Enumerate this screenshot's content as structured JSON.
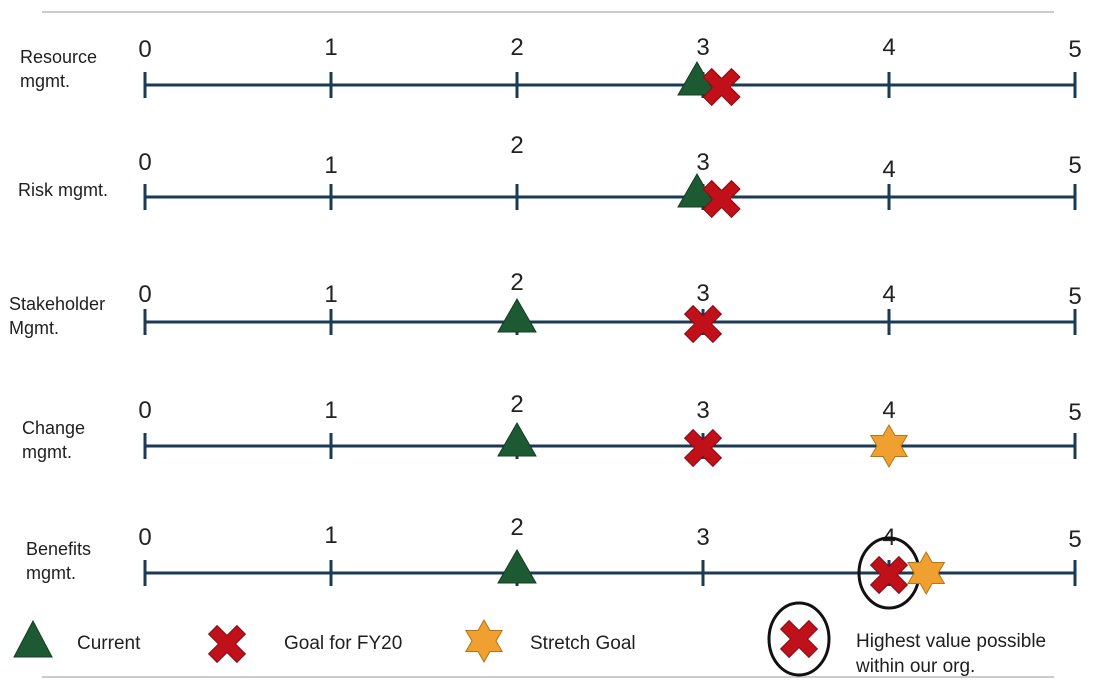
{
  "chart_data": {
    "type": "scatter",
    "x_ticks": [
      "0",
      "1",
      "2",
      "3",
      "4",
      "5"
    ],
    "xlim": [
      0,
      5
    ],
    "grid": false,
    "legend_placement": "bottom",
    "colors": {
      "current": "#1d5a33",
      "goal": "#c0101a",
      "stretch": "#f0a030",
      "axis": "#1b3a54"
    },
    "categories": [
      "Resource\nmgmt.",
      "Risk mgmt.",
      "Stakeholder\nMgmt.",
      "Change\nmgmt.",
      "Benefits\nmgmt."
    ],
    "series": [
      {
        "name": "Current",
        "marker": "triangle",
        "values": [
          3,
          3,
          2,
          2,
          2
        ]
      },
      {
        "name": "Goal for FY20",
        "marker": "cross",
        "values": [
          3.1,
          3.1,
          3,
          3,
          4
        ]
      },
      {
        "name": "Stretch Goal",
        "marker": "star",
        "values": [
          null,
          null,
          null,
          4,
          4.2
        ]
      }
    ],
    "highest_value_possible": [
      null,
      null,
      null,
      null,
      4
    ]
  },
  "legend": {
    "current_label": "Current",
    "goal_label": "Goal for FY20",
    "stretch_label": "Stretch Goal",
    "highest_label": "Highest value  possible\nwithin our org."
  }
}
